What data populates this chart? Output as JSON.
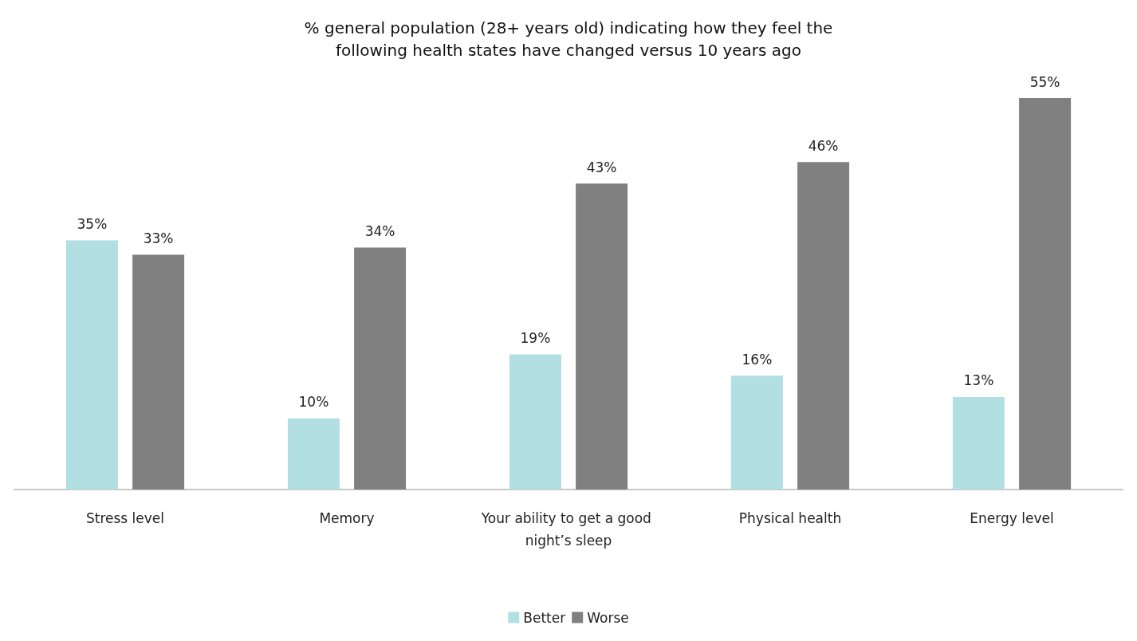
{
  "chart_data": {
    "type": "bar",
    "title": "% general population (28+ years old) indicating how they feel the\nfollowing health states have changed versus 10 years ago",
    "categories": [
      "Stress level",
      "Memory",
      "Your ability to get a good night’s sleep",
      "Physical health",
      "Energy level"
    ],
    "series": [
      {
        "name": "Better",
        "color": "#b2dfe2",
        "values": [
          35,
          10,
          19,
          16,
          13
        ],
        "value_labels": [
          "35%",
          "10%",
          "19%",
          "16%",
          "13%"
        ]
      },
      {
        "name": "Worse",
        "color": "#808080",
        "values": [
          33,
          34,
          43,
          46,
          55
        ],
        "value_labels": [
          "33%",
          "34%",
          "43%",
          "46%",
          "55%"
        ]
      }
    ],
    "legend": "bottom",
    "grid": false
  }
}
